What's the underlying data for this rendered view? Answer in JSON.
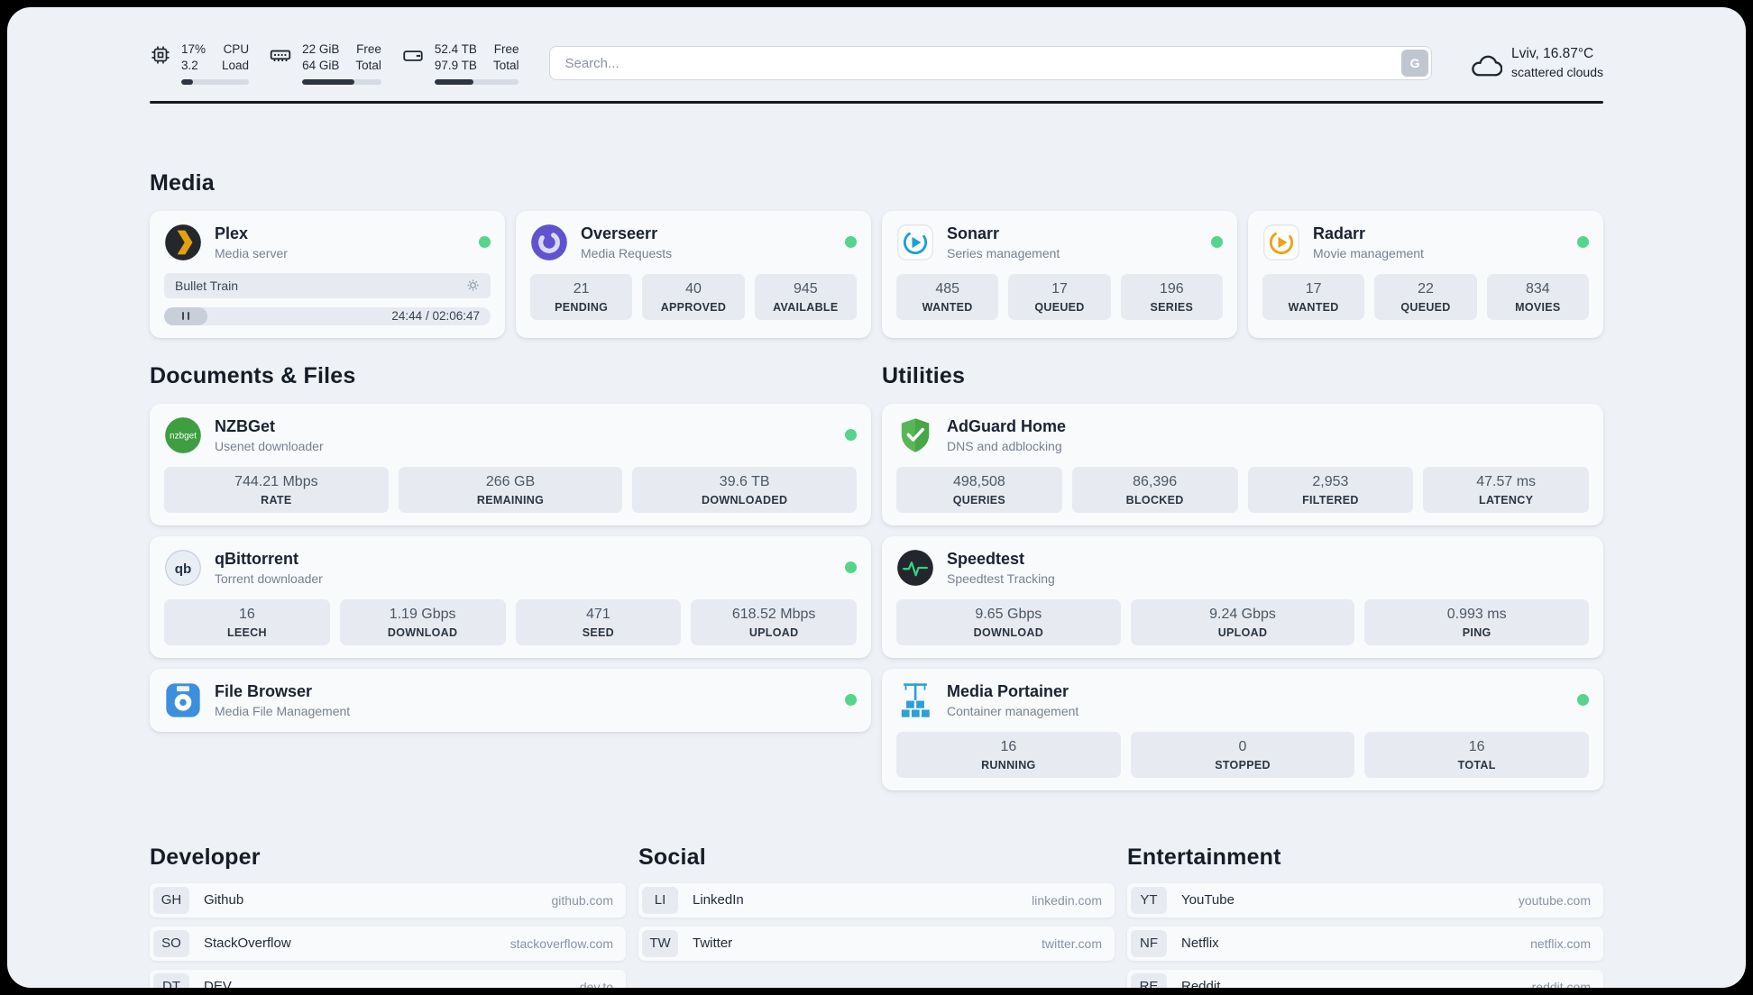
{
  "header": {
    "cpu": {
      "value1": "17%",
      "value2": "3.2",
      "label1": "CPU",
      "label2": "Load",
      "progress": 17
    },
    "memory": {
      "value1": "22 GiB",
      "value2": "64 GiB",
      "label1": "Free",
      "label2": "Total",
      "progress": 66
    },
    "disk": {
      "value1": "52.4 TB",
      "value2": "97.9 TB",
      "label1": "Free",
      "label2": "Total",
      "progress": 46
    },
    "search": {
      "placeholder": "Search...",
      "button_label": "G"
    },
    "weather": {
      "location": "Lviv, 16.87°C",
      "condition": "scattered clouds"
    }
  },
  "media": {
    "title": "Media",
    "plex": {
      "name": "Plex",
      "subtitle": "Media server",
      "now_playing": "Bullet Train",
      "time": "24:44 / 02:06:47"
    },
    "overseerr": {
      "name": "Overseerr",
      "subtitle": "Media Requests",
      "stats": [
        {
          "value": "21",
          "label": "PENDING"
        },
        {
          "value": "40",
          "label": "APPROVED"
        },
        {
          "value": "945",
          "label": "AVAILABLE"
        }
      ]
    },
    "sonarr": {
      "name": "Sonarr",
      "subtitle": "Series management",
      "stats": [
        {
          "value": "485",
          "label": "WANTED"
        },
        {
          "value": "17",
          "label": "QUEUED"
        },
        {
          "value": "196",
          "label": "SERIES"
        }
      ]
    },
    "radarr": {
      "name": "Radarr",
      "subtitle": "Movie management",
      "stats": [
        {
          "value": "17",
          "label": "WANTED"
        },
        {
          "value": "22",
          "label": "QUEUED"
        },
        {
          "value": "834",
          "label": "MOVIES"
        }
      ]
    }
  },
  "documents": {
    "title": "Documents & Files",
    "nzbget": {
      "name": "NZBGet",
      "subtitle": "Usenet downloader",
      "stats": [
        {
          "value": "744.21 Mbps",
          "label": "RATE"
        },
        {
          "value": "266 GB",
          "label": "REMAINING"
        },
        {
          "value": "39.6 TB",
          "label": "DOWNLOADED"
        }
      ]
    },
    "qbittorrent": {
      "name": "qBittorrent",
      "subtitle": "Torrent downloader",
      "stats": [
        {
          "value": "16",
          "label": "LEECH"
        },
        {
          "value": "1.19 Gbps",
          "label": "DOWNLOAD"
        },
        {
          "value": "471",
          "label": "SEED"
        },
        {
          "value": "618.52 Mbps",
          "label": "UPLOAD"
        }
      ]
    },
    "filebrowser": {
      "name": "File Browser",
      "subtitle": "Media File Management"
    }
  },
  "utilities": {
    "title": "Utilities",
    "adguard": {
      "name": "AdGuard Home",
      "subtitle": "DNS and adblocking",
      "stats": [
        {
          "value": "498,508",
          "label": "QUERIES"
        },
        {
          "value": "86,396",
          "label": "BLOCKED"
        },
        {
          "value": "2,953",
          "label": "FILTERED"
        },
        {
          "value": "47.57 ms",
          "label": "LATENCY"
        }
      ]
    },
    "speedtest": {
      "name": "Speedtest",
      "subtitle": "Speedtest Tracking",
      "stats": [
        {
          "value": "9.65 Gbps",
          "label": "DOWNLOAD"
        },
        {
          "value": "9.24 Gbps",
          "label": "UPLOAD"
        },
        {
          "value": "0.993 ms",
          "label": "PING"
        }
      ]
    },
    "portainer": {
      "name": "Media Portainer",
      "subtitle": "Container management",
      "stats": [
        {
          "value": "16",
          "label": "RUNNING"
        },
        {
          "value": "0",
          "label": "STOPPED"
        },
        {
          "value": "16",
          "label": "TOTAL"
        }
      ]
    }
  },
  "bookmarks": {
    "developer": {
      "title": "Developer",
      "items": [
        {
          "abbr": "GH",
          "name": "Github",
          "url": "github.com"
        },
        {
          "abbr": "SO",
          "name": "StackOverflow",
          "url": "stackoverflow.com"
        },
        {
          "abbr": "DT",
          "name": "DEV",
          "url": "dev.to"
        }
      ]
    },
    "social": {
      "title": "Social",
      "items": [
        {
          "abbr": "LI",
          "name": "LinkedIn",
          "url": "linkedin.com"
        },
        {
          "abbr": "TW",
          "name": "Twitter",
          "url": "twitter.com"
        }
      ]
    },
    "entertainment": {
      "title": "Entertainment",
      "items": [
        {
          "abbr": "YT",
          "name": "YouTube",
          "url": "youtube.com"
        },
        {
          "abbr": "NF",
          "name": "Netflix",
          "url": "netflix.com"
        },
        {
          "abbr": "RE",
          "name": "Reddit",
          "url": "reddit.com"
        }
      ]
    }
  }
}
